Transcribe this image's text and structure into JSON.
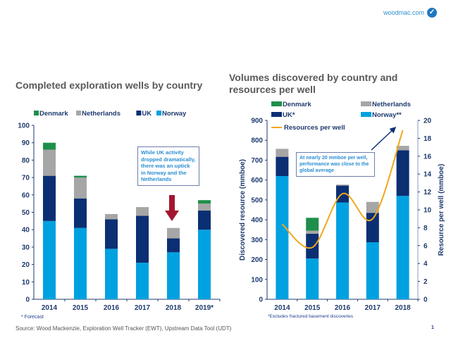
{
  "header": {
    "logo_text": "woodmac.com"
  },
  "footer": {
    "source": "Source: Wood Mackenzie, Exploration Well Tracker (EWT), Upstream Data Tool (UDT)",
    "page_number": "1"
  },
  "colors": {
    "Denmark": "#1e8f4a",
    "Netherlands": "#a6a6a6",
    "UK": "#0b2f73",
    "Norway": "#00a1e0",
    "line": "#f0a81c",
    "axis": "#1f3a6e"
  },
  "chart_data": [
    {
      "type": "bar",
      "stacked": true,
      "title": "Completed exploration wells by country",
      "categories": [
        "2014",
        "2015",
        "2016",
        "2017",
        "2018",
        "2019*"
      ],
      "series": [
        {
          "name": "Norway",
          "values": [
            45,
            41,
            29,
            21,
            27,
            40
          ]
        },
        {
          "name": "UK",
          "values": [
            26,
            17,
            17,
            27,
            8,
            11
          ]
        },
        {
          "name": "Netherlands",
          "values": [
            15,
            12,
            3,
            5,
            6,
            4
          ]
        },
        {
          "name": "Denmark",
          "values": [
            4,
            1,
            0,
            0,
            0,
            2
          ]
        }
      ],
      "legend_order": [
        "Denmark",
        "Netherlands",
        "UK",
        "Norway"
      ],
      "ylim": [
        0,
        100
      ],
      "yticks": [
        0,
        10,
        20,
        30,
        40,
        50,
        60,
        70,
        80,
        90,
        100
      ],
      "legend_position": "top",
      "grid": false,
      "annotation": "While UK activity dropped dramatically, there was an uptick in Norway and the Netherlands",
      "footnote": "* Forecast"
    },
    {
      "type": "bar+line",
      "stacked": true,
      "title": "Volumes discovered by country and resources per well",
      "categories": [
        "2014",
        "2015",
        "2016",
        "2017",
        "2018"
      ],
      "series": [
        {
          "name": "Norway**",
          "values": [
            620,
            205,
            487,
            287,
            520
          ]
        },
        {
          "name": "UK*",
          "values": [
            97,
            125,
            85,
            148,
            230
          ]
        },
        {
          "name": "Netherlands",
          "values": [
            40,
            15,
            5,
            55,
            22
          ]
        },
        {
          "name": "Denmark",
          "values": [
            0,
            65,
            0,
            0,
            0
          ]
        }
      ],
      "line_series": {
        "name": "Resources per well",
        "values": [
          8.4,
          5.8,
          11.8,
          9.0,
          18.9
        ],
        "axis": "right"
      },
      "ylabel": "Discovered resource (mmboe)",
      "ylabel_right": "Resource per well (mmboe)",
      "ylim": [
        0,
        900
      ],
      "yticks": [
        0,
        100,
        200,
        300,
        400,
        500,
        600,
        700,
        800,
        900
      ],
      "ylim_right": [
        0,
        20
      ],
      "yticks_right": [
        0,
        2,
        4,
        6,
        8,
        10,
        12,
        14,
        16,
        18,
        20
      ],
      "legend_position": "top",
      "grid": false,
      "annotation": "At nearly 20 mmboe per well, performance was close to the global average",
      "footnote": "*Excludes fractured basement discoveries"
    }
  ]
}
